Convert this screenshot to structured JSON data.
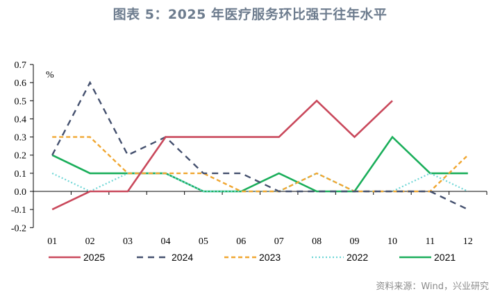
{
  "title": "图表 5：2025 年医疗服务环比强于往年水平",
  "unit_label": "%",
  "source": "资料来源：Wind，兴业研究",
  "chart_data": {
    "type": "line",
    "title": "图表 5：2025 年医疗服务环比强于往年水平",
    "xlabel": "",
    "ylabel": "%",
    "ylim": [
      -0.2,
      0.7
    ],
    "yticks": [
      "0.7",
      "0.6",
      "0.5",
      "0.4",
      "0.3",
      "0.2",
      "0.1",
      "0.0",
      "-0.1",
      "-0.2"
    ],
    "categories": [
      "01",
      "02",
      "03",
      "04",
      "05",
      "06",
      "07",
      "08",
      "09",
      "10",
      "11",
      "12"
    ],
    "grid": false,
    "legend_position": "bottom",
    "series": [
      {
        "name": "2025",
        "color": "#c9485b",
        "style": "solid",
        "values": [
          -0.1,
          0.0,
          0.0,
          0.3,
          0.3,
          0.3,
          0.3,
          0.5,
          0.3,
          0.5,
          null,
          null
        ]
      },
      {
        "name": "2024",
        "color": "#44506e",
        "style": "dashed",
        "values": [
          0.2,
          0.6,
          0.2,
          0.3,
          0.1,
          0.1,
          0.0,
          0.0,
          0.0,
          0.0,
          0.0,
          -0.1
        ]
      },
      {
        "name": "2023",
        "color": "#f0a630",
        "style": "short-dashed",
        "values": [
          0.3,
          0.3,
          0.1,
          0.1,
          0.1,
          0.0,
          0.0,
          0.1,
          0.0,
          0.0,
          0.0,
          0.2
        ]
      },
      {
        "name": "2022",
        "color": "#6fd6d6",
        "style": "dotted",
        "values": [
          0.1,
          0.0,
          0.1,
          0.1,
          0.0,
          0.0,
          0.0,
          0.1,
          0.0,
          0.0,
          0.1,
          0.0
        ]
      },
      {
        "name": "2021",
        "color": "#1aae5a",
        "style": "solid",
        "values": [
          0.2,
          0.1,
          0.1,
          0.1,
          0.0,
          0.0,
          0.1,
          0.0,
          0.0,
          0.3,
          0.1,
          0.1
        ]
      }
    ]
  }
}
